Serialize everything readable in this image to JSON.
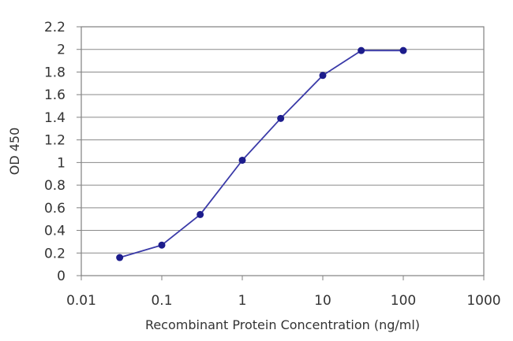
{
  "chart_data": {
    "type": "line",
    "title": "",
    "xlabel": "Recombinant Protein Concentration (ng/ml)",
    "ylabel": "OD 450",
    "x_scale": "log",
    "xlim": [
      0.01,
      1000
    ],
    "ylim": [
      0,
      2.2
    ],
    "x_tick_labels": [
      "0.01",
      "0.1",
      "1",
      "10",
      "100",
      "1000"
    ],
    "x_tick_values": [
      0.01,
      0.1,
      1,
      10,
      100,
      1000
    ],
    "y_tick_labels": [
      "0",
      "0.2",
      "0.4",
      "0.6",
      "0.8",
      "1",
      "1.2",
      "1.4",
      "1.6",
      "1.8",
      "2",
      "2.2"
    ],
    "y_tick_values": [
      0,
      0.2,
      0.4,
      0.6,
      0.8,
      1,
      1.2,
      1.4,
      1.6,
      1.8,
      2,
      2.2
    ],
    "grid": "horizontal",
    "legend": "none",
    "series": [
      {
        "x": [
          0.03,
          0.1,
          0.3,
          1,
          3,
          10,
          30,
          100
        ],
        "y": [
          0.16,
          0.27,
          0.54,
          1.02,
          1.39,
          1.77,
          1.99,
          1.99
        ],
        "color": "#3a3aa8"
      }
    ]
  }
}
